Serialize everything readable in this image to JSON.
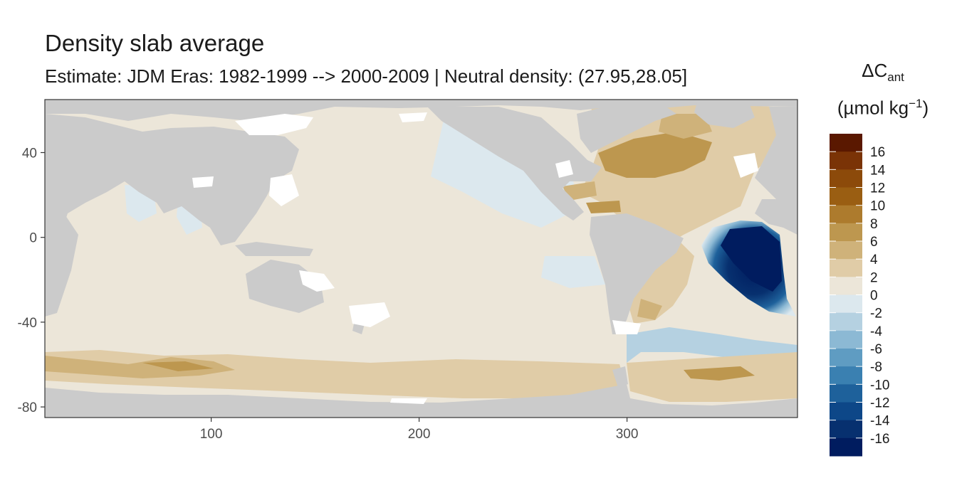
{
  "title": "Density slab average",
  "subtitle": "Estimate: JDM Eras: 1982-1999 --> 2000-2009 | Neutral density: (27.95,28.05]",
  "legend": {
    "title_main": "ΔC",
    "title_sub": "ant",
    "unit_prefix": "(µmol kg",
    "unit_sup": "−1",
    "unit_suffix": ")",
    "labels": [
      "16",
      "14",
      "12",
      "10",
      "8",
      "6",
      "4",
      "2",
      "0",
      "-2",
      "-4",
      "-6",
      "-8",
      "-10",
      "-12",
      "-14",
      "-16"
    ],
    "colors": [
      "#5a1800",
      "#7a3306",
      "#8c4a0a",
      "#9a5e12",
      "#ad7b2d",
      "#bd974f",
      "#cfb27a",
      "#e0cca7",
      "#ece6d9",
      "#dce8ee",
      "#b5d1e1",
      "#8cb9d4",
      "#5f9cc2",
      "#3a80b1",
      "#1e619b",
      "#0d4788",
      "#07306f",
      "#001c5f"
    ]
  },
  "axes": {
    "x_ticks": [
      100,
      200,
      300
    ],
    "y_ticks": [
      40,
      0,
      -40,
      -80
    ],
    "x_range": [
      20,
      382
    ],
    "y_range": [
      -85,
      65
    ]
  },
  "colors": {
    "land": "#cbcbcb",
    "gap": "#ffffff",
    "neutral": "#ece6d9",
    "panel_border": "#333333"
  }
}
